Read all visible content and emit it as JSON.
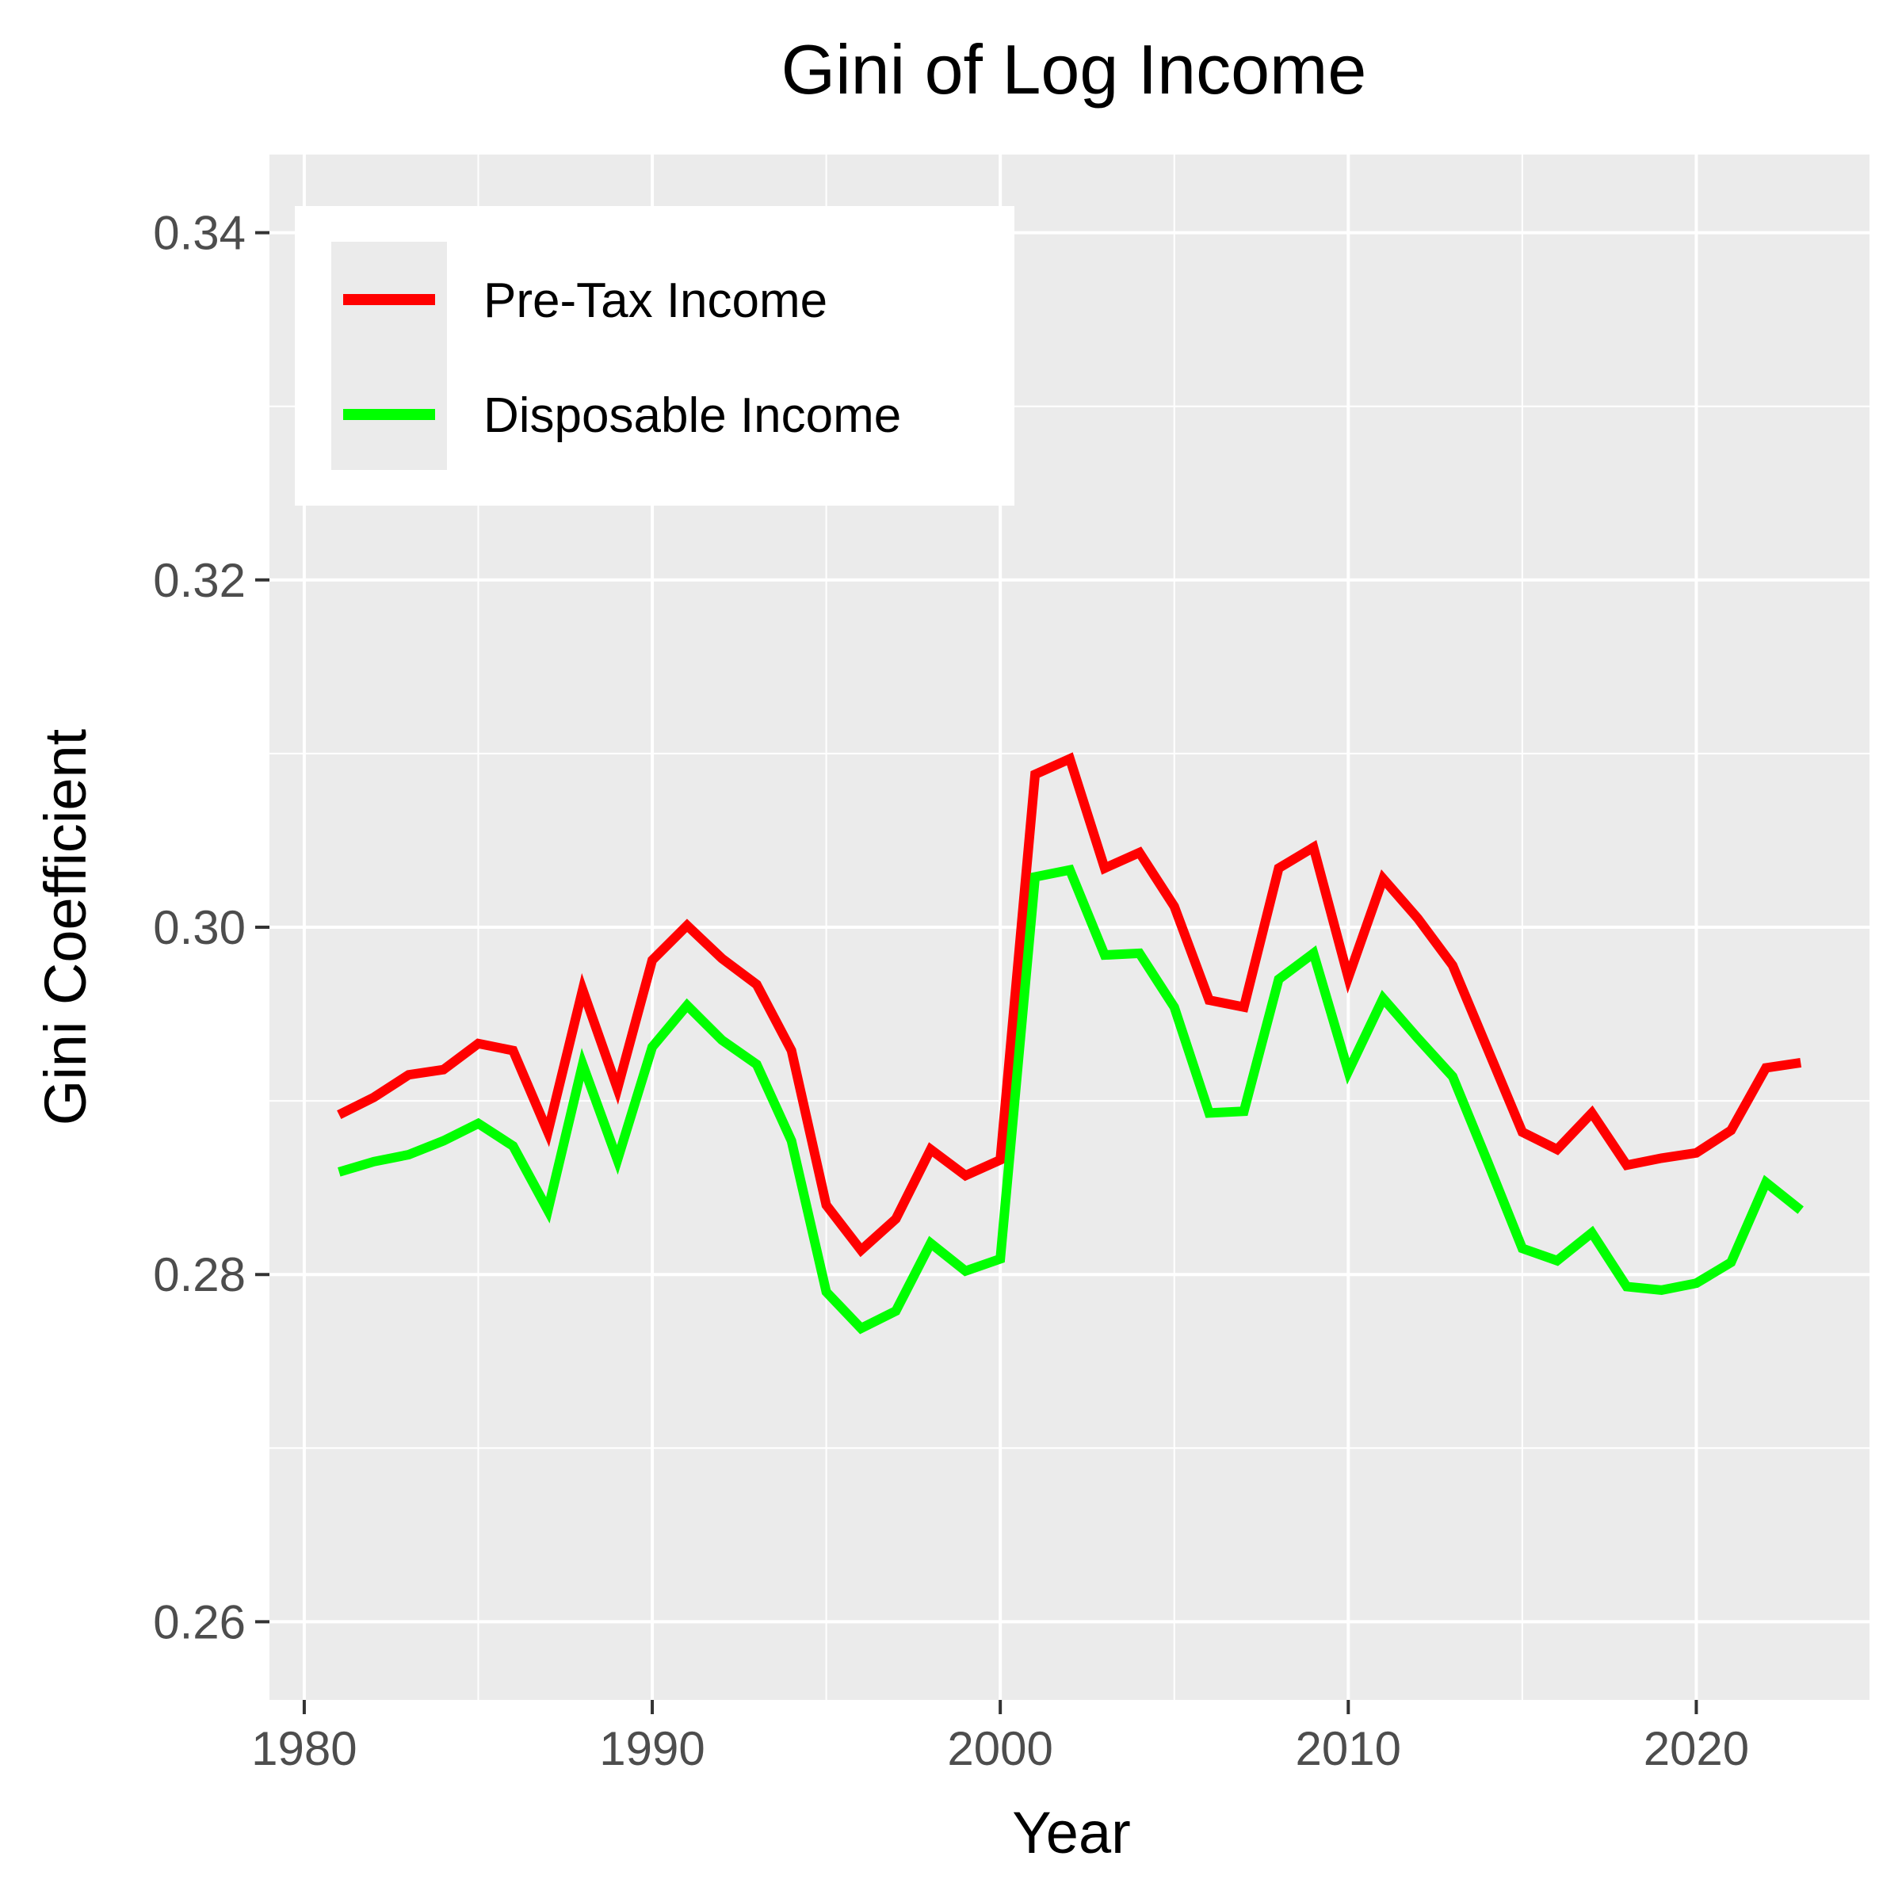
{
  "chart_data": {
    "type": "line",
    "title": "Gini of Log Income",
    "xlabel": "Year",
    "ylabel": "Gini Coefficient",
    "xlim": [
      1979,
      2025
    ],
    "ylim": [
      0.2555,
      0.3445
    ],
    "x_ticks": [
      1980,
      1990,
      2000,
      2010,
      2020
    ],
    "x_tick_labels": [
      "1980",
      "1990",
      "2000",
      "2010",
      "2020"
    ],
    "x_minor_ticks": [
      1985,
      1995,
      2005,
      2015,
      2025
    ],
    "y_ticks": [
      0.26,
      0.28,
      0.3,
      0.32,
      0.34
    ],
    "y_tick_labels": [
      "0.26",
      "0.28",
      "0.30",
      "0.32",
      "0.34"
    ],
    "y_minor_ticks": [
      0.27,
      0.29,
      0.31,
      0.33
    ],
    "grid": true,
    "legend_position": "top-left",
    "panel_background": "#ebebeb",
    "x": [
      1981,
      1982,
      1983,
      1984,
      1985,
      1986,
      1987,
      1988,
      1989,
      1990,
      1991,
      1992,
      1993,
      1994,
      1995,
      1996,
      1997,
      1998,
      1999,
      2000,
      2001,
      2002,
      2003,
      2004,
      2005,
      2006,
      2007,
      2008,
      2009,
      2010,
      2011,
      2012,
      2013,
      2014,
      2015,
      2016,
      2017,
      2018,
      2019,
      2020,
      2021,
      2022,
      2023
    ],
    "series": [
      {
        "name": "Pre-Tax Income",
        "color": "#ff0000",
        "values": [
          0.2892,
          0.2902,
          0.2915,
          0.2918,
          0.2933,
          0.2929,
          0.2882,
          0.2964,
          0.2907,
          0.2981,
          0.3001,
          0.2982,
          0.2967,
          0.2929,
          0.284,
          0.2814,
          0.2832,
          0.2872,
          0.2857,
          0.2866,
          0.3088,
          0.3097,
          0.3034,
          0.3043,
          0.3012,
          0.2958,
          0.2954,
          0.3034,
          0.3046,
          0.2971,
          0.3028,
          0.3005,
          0.2978,
          0.293,
          0.2882,
          0.2872,
          0.2893,
          0.2863,
          0.2867,
          0.287,
          0.2883,
          0.2919,
          0.2922
        ]
      },
      {
        "name": "Disposable Income",
        "color": "#00ff00",
        "values": [
          0.2859,
          0.2865,
          0.2869,
          0.2877,
          0.2887,
          0.2874,
          0.2837,
          0.2921,
          0.2866,
          0.2931,
          0.2955,
          0.2935,
          0.2921,
          0.2877,
          0.279,
          0.2769,
          0.2779,
          0.2818,
          0.2802,
          0.2809,
          0.3029,
          0.3033,
          0.2984,
          0.2985,
          0.2954,
          0.2893,
          0.2894,
          0.297,
          0.2985,
          0.2917,
          0.2959,
          0.2936,
          0.2914,
          0.2865,
          0.2815,
          0.2808,
          0.2824,
          0.2793,
          0.2791,
          0.2795,
          0.2807,
          0.2853,
          0.2837
        ]
      }
    ]
  }
}
